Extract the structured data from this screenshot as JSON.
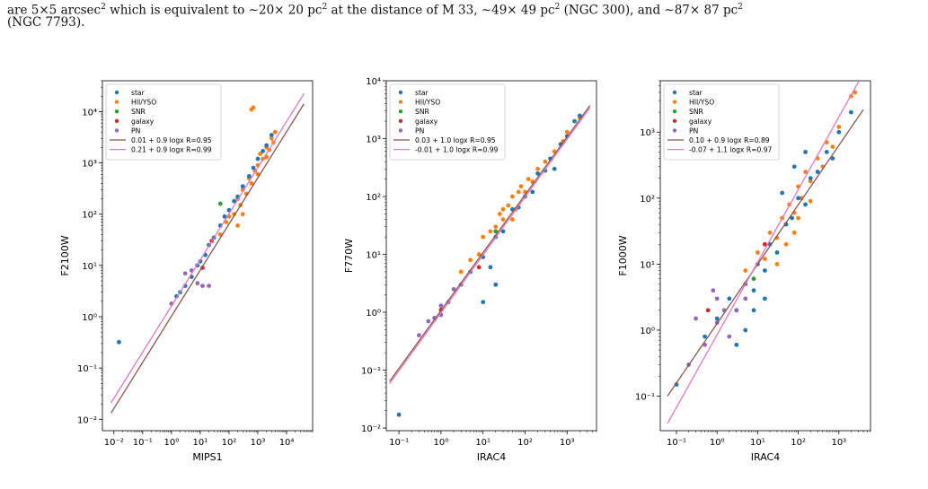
{
  "caption": {
    "line1_pre": "are 5×5 arcsec",
    "line1_sup": "2",
    "line1_mid": " which is equivalent to ∼20× 20 pc",
    "line1_sup2": "2",
    "line1_mid2": " at the distance of M 33, ∼49× 49 pc",
    "line1_sup3": "2",
    "line1_mid3": " (NGC 300), and ∼87× 87 pc",
    "line1_sup4": "2",
    "line2": "(NGC 7793)."
  },
  "colors": {
    "star": "#1f77b4",
    "hii": "#ff7f0e",
    "snr": "#2ca02c",
    "galaxy": "#d62728",
    "pn": "#9467bd",
    "fit1": "#8c564b",
    "fit2": "#e377c2"
  },
  "chart_data": [
    {
      "type": "scatter",
      "xlabel": "MIPS1",
      "ylabel": "F2100W",
      "xscale": "log",
      "yscale": "log",
      "xlim": [
        0.004,
        80000
      ],
      "ylim": [
        0.006,
        40000
      ],
      "xticks": [
        "10⁻²",
        "10⁻¹",
        "10⁰",
        "10¹",
        "10²",
        "10³",
        "10⁴"
      ],
      "xtick_values": [
        0.01,
        0.1,
        1,
        10,
        100,
        1000,
        10000
      ],
      "yticks": [
        "10⁻²",
        "10⁻¹",
        "10⁰",
        "10¹",
        "10²",
        "10³",
        "10⁴"
      ],
      "ytick_values": [
        0.01,
        0.1,
        1,
        10,
        100,
        1000,
        10000
      ],
      "legend": [
        "star",
        "HII/YSO",
        "SNR",
        "galaxy",
        "PN",
        "0.01 + 0.9 logx R=0.95",
        "0.21 + 0.9 logx R=0.99"
      ],
      "fits": [
        {
          "a": 0.01,
          "b": 0.9
        },
        {
          "a": 0.21,
          "b": 0.9
        }
      ],
      "fit_range": [
        0.008,
        40000
      ],
      "points": {
        "star": [
          [
            0.015,
            0.32
          ],
          [
            1.5,
            2.5
          ],
          [
            2,
            3
          ],
          [
            3,
            4
          ],
          [
            5,
            6
          ],
          [
            8,
            10
          ],
          [
            10,
            12
          ],
          [
            15,
            16
          ],
          [
            20,
            25
          ],
          [
            30,
            35
          ],
          [
            50,
            60
          ],
          [
            70,
            90
          ],
          [
            100,
            120
          ],
          [
            150,
            180
          ],
          [
            200,
            220
          ],
          [
            300,
            350
          ],
          [
            500,
            550
          ],
          [
            700,
            800
          ],
          [
            1000,
            1200
          ],
          [
            1500,
            1700
          ],
          [
            2000,
            2200
          ],
          [
            3000,
            3500
          ]
        ],
        "hii": [
          [
            50,
            40
          ],
          [
            80,
            70
          ],
          [
            100,
            90
          ],
          [
            150,
            100
          ],
          [
            200,
            200
          ],
          [
            250,
            150
          ],
          [
            300,
            300
          ],
          [
            400,
            250
          ],
          [
            500,
            500
          ],
          [
            600,
            400
          ],
          [
            800,
            700
          ],
          [
            1000,
            900
          ],
          [
            1200,
            1500
          ],
          [
            1500,
            1200
          ],
          [
            2000,
            2000
          ],
          [
            2500,
            1800
          ],
          [
            3000,
            3000
          ],
          [
            3500,
            2500
          ],
          [
            4000,
            4000
          ],
          [
            600,
            11000
          ],
          [
            700,
            12000
          ],
          [
            200,
            60
          ],
          [
            300,
            100
          ],
          [
            1000,
            600
          ],
          [
            2000,
            1300
          ]
        ],
        "snr": [
          [
            50,
            160
          ]
        ],
        "galaxy": [
          [
            25,
            30
          ],
          [
            12,
            9
          ]
        ],
        "pn": [
          [
            1,
            1.8
          ],
          [
            3,
            7
          ],
          [
            5,
            8
          ],
          [
            8,
            4.5
          ],
          [
            12,
            4
          ],
          [
            20,
            4
          ]
        ]
      }
    },
    {
      "type": "scatter",
      "xlabel": "IRAC4",
      "ylabel": "F770W",
      "xscale": "log",
      "yscale": "log",
      "xlim": [
        0.05,
        5000
      ],
      "ylim": [
        0.009,
        10000
      ],
      "xticks": [
        "10⁻¹",
        "10⁰",
        "10¹",
        "10²",
        "10³"
      ],
      "xtick_values": [
        0.1,
        1,
        10,
        100,
        1000
      ],
      "yticks": [
        "10⁻²",
        "10⁻¹",
        "10⁰",
        "10¹",
        "10²",
        "10³",
        "10⁴"
      ],
      "ytick_values": [
        0.01,
        0.1,
        1,
        10,
        100,
        1000,
        10000
      ],
      "legend": [
        "star",
        "HII/YSO",
        "SNR",
        "galaxy",
        "PN",
        "0.03 + 1.0 logx R=0.95",
        "-0.01 + 1.0 logx R=0.99"
      ],
      "fits": [
        {
          "a": 0.03,
          "b": 1.0
        },
        {
          "a": -0.01,
          "b": 1.0
        }
      ],
      "fit_range": [
        0.06,
        3500
      ],
      "points": {
        "star": [
          [
            0.1,
            0.017
          ],
          [
            3,
            3
          ],
          [
            5,
            5
          ],
          [
            10,
            9
          ],
          [
            15,
            6
          ],
          [
            20,
            20
          ],
          [
            30,
            25
          ],
          [
            50,
            60
          ],
          [
            70,
            65
          ],
          [
            100,
            100
          ],
          [
            150,
            120
          ],
          [
            200,
            250
          ],
          [
            300,
            280
          ],
          [
            400,
            450
          ],
          [
            500,
            300
          ],
          [
            700,
            800
          ],
          [
            1000,
            1100
          ],
          [
            1500,
            2000
          ],
          [
            2000,
            2500
          ],
          [
            10,
            1.5
          ],
          [
            20,
            3
          ]
        ],
        "hii": [
          [
            3,
            5
          ],
          [
            5,
            8
          ],
          [
            8,
            10
          ],
          [
            10,
            20
          ],
          [
            15,
            25
          ],
          [
            20,
            30
          ],
          [
            25,
            50
          ],
          [
            30,
            40
          ],
          [
            40,
            70
          ],
          [
            50,
            100
          ],
          [
            60,
            60
          ],
          [
            80,
            150
          ],
          [
            100,
            120
          ],
          [
            120,
            200
          ],
          [
            150,
            180
          ],
          [
            200,
            300
          ],
          [
            300,
            400
          ],
          [
            500,
            600
          ],
          [
            800,
            900
          ],
          [
            1000,
            1300
          ],
          [
            2000,
            2300
          ],
          [
            30,
            60
          ],
          [
            50,
            40
          ],
          [
            70,
            120
          ]
        ],
        "snr": [
          [
            20,
            25
          ]
        ],
        "galaxy": [
          [
            8,
            6
          ],
          [
            1,
            1.1
          ]
        ],
        "pn": [
          [
            0.3,
            0.4
          ],
          [
            0.5,
            0.7
          ],
          [
            1,
            0.9
          ],
          [
            1.5,
            1.5
          ],
          [
            2,
            2.5
          ],
          [
            1,
            1.3
          ],
          [
            0.7,
            0.8
          ]
        ]
      }
    },
    {
      "type": "scatter",
      "xlabel": "IRAC4",
      "ylabel": "F1000W",
      "xscale": "log",
      "yscale": "log",
      "xlim": [
        0.04,
        6000
      ],
      "ylim": [
        0.03,
        6000
      ],
      "xticks": [
        "10⁻¹",
        "10⁰",
        "10¹",
        "10²",
        "10³"
      ],
      "xtick_values": [
        0.1,
        1,
        10,
        100,
        1000
      ],
      "yticks": [
        "10⁻¹",
        "10⁰",
        "10¹",
        "10²",
        "10³"
      ],
      "ytick_values": [
        0.1,
        1,
        10,
        100,
        1000
      ],
      "legend": [
        "star",
        "HII/YSO",
        "SNR",
        "galaxy",
        "PN",
        "0.10 + 0.9 logx R=0.89",
        "-0.07 + 1.1 logx R=0.97"
      ],
      "fits": [
        {
          "a": 0.1,
          "b": 0.9
        },
        {
          "a": -0.07,
          "b": 1.1
        }
      ],
      "fit_range": [
        0.06,
        4000
      ],
      "points": {
        "star": [
          [
            0.1,
            0.15
          ],
          [
            0.5,
            0.8
          ],
          [
            1,
            1.5
          ],
          [
            2,
            3
          ],
          [
            3,
            2
          ],
          [
            5,
            5
          ],
          [
            8,
            4
          ],
          [
            10,
            10
          ],
          [
            15,
            8
          ],
          [
            20,
            20
          ],
          [
            30,
            15
          ],
          [
            50,
            40
          ],
          [
            70,
            50
          ],
          [
            100,
            100
          ],
          [
            150,
            80
          ],
          [
            200,
            200
          ],
          [
            300,
            250
          ],
          [
            500,
            500
          ],
          [
            700,
            400
          ],
          [
            1000,
            1000
          ],
          [
            2000,
            2000
          ],
          [
            3,
            0.6
          ],
          [
            5,
            1
          ],
          [
            8,
            2
          ],
          [
            15,
            3
          ],
          [
            40,
            120
          ],
          [
            80,
            300
          ],
          [
            150,
            500
          ]
        ],
        "hii": [
          [
            5,
            8
          ],
          [
            10,
            15
          ],
          [
            15,
            12
          ],
          [
            20,
            30
          ],
          [
            30,
            25
          ],
          [
            40,
            50
          ],
          [
            50,
            40
          ],
          [
            60,
            80
          ],
          [
            80,
            60
          ],
          [
            100,
            150
          ],
          [
            120,
            100
          ],
          [
            150,
            250
          ],
          [
            200,
            180
          ],
          [
            300,
            400
          ],
          [
            400,
            300
          ],
          [
            500,
            700
          ],
          [
            700,
            600
          ],
          [
            1000,
            1200
          ],
          [
            2000,
            3500
          ],
          [
            2500,
            4000
          ],
          [
            30,
            10
          ],
          [
            50,
            20
          ],
          [
            80,
            30
          ],
          [
            100,
            50
          ],
          [
            200,
            90
          ]
        ],
        "snr": [
          [
            8,
            6
          ]
        ],
        "galaxy": [
          [
            0.6,
            2
          ],
          [
            15,
            20
          ]
        ],
        "pn": [
          [
            0.2,
            0.3
          ],
          [
            0.3,
            1.5
          ],
          [
            0.5,
            0.6
          ],
          [
            1,
            1.3
          ],
          [
            1.5,
            2
          ],
          [
            2,
            0.8
          ],
          [
            3,
            2
          ],
          [
            5,
            3
          ],
          [
            0.8,
            4
          ],
          [
            1,
            3
          ]
        ]
      }
    }
  ]
}
